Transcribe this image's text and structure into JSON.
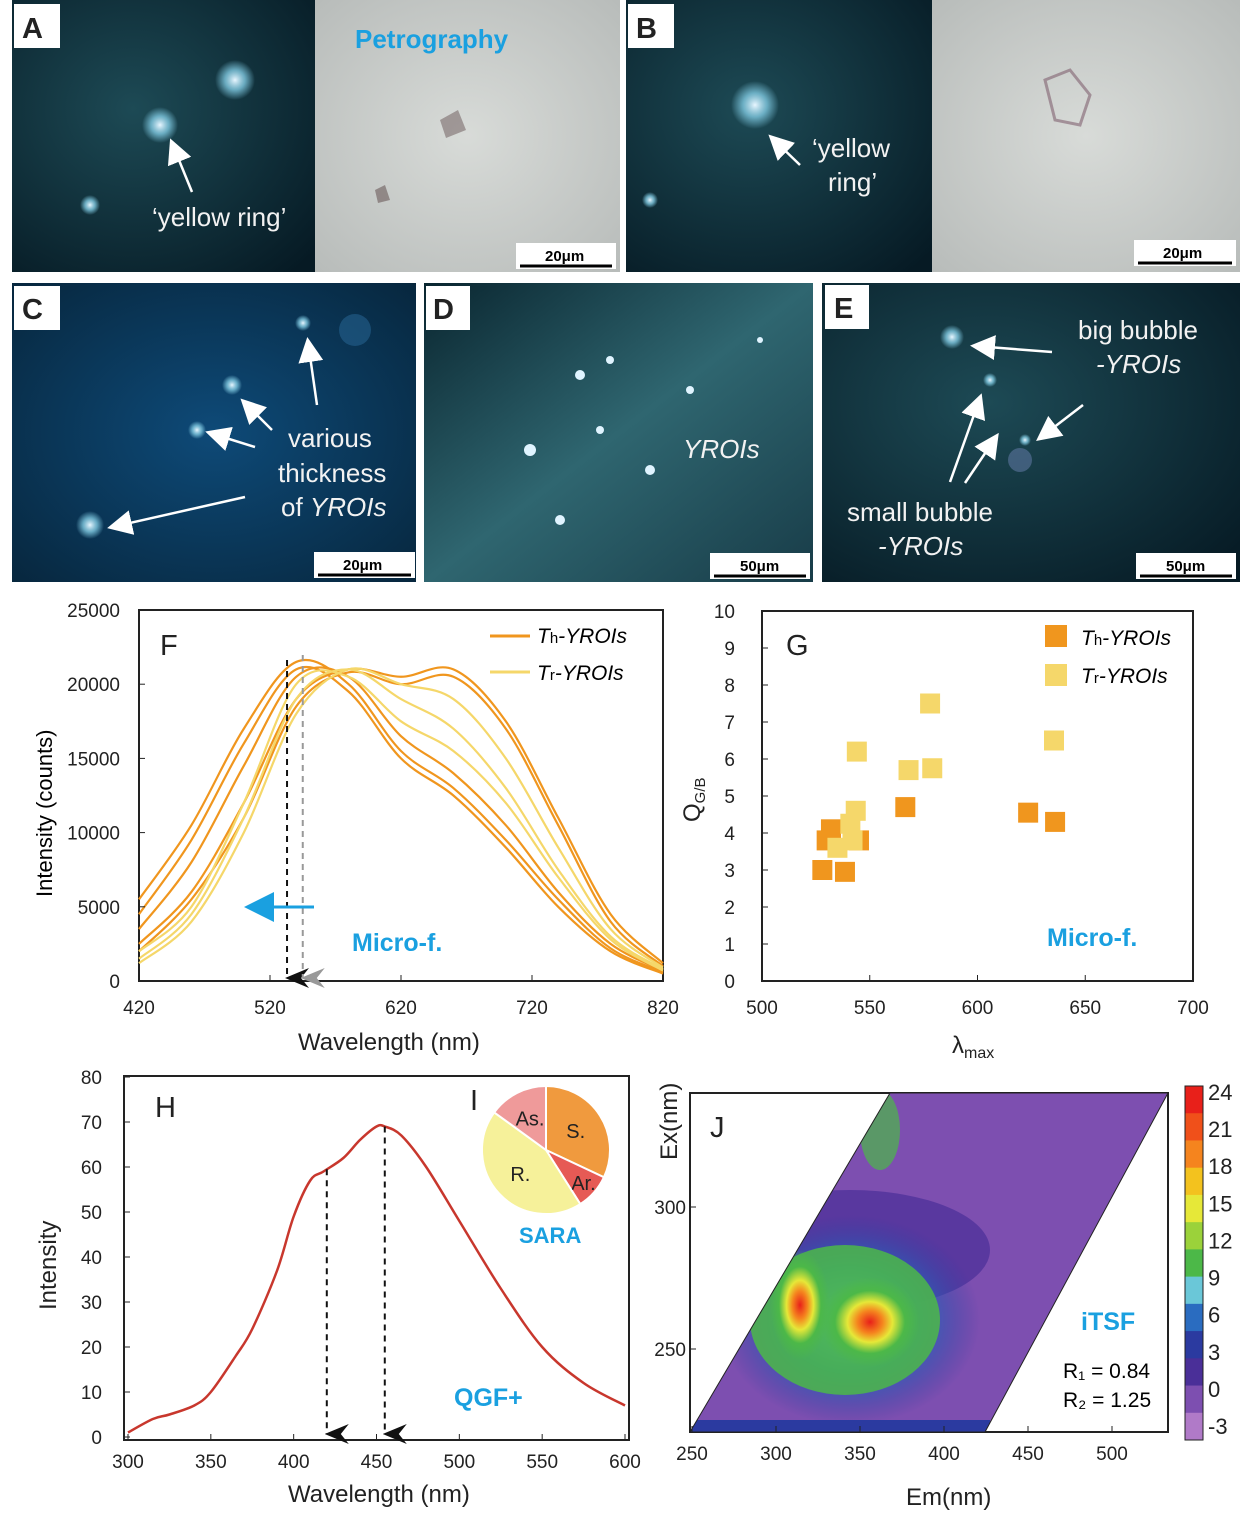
{
  "panels": {
    "A": {
      "label": "A",
      "title": "Petrography",
      "annotation": "‘yellow ring’",
      "scale": "20μm"
    },
    "B": {
      "label": "B",
      "annotation_line1": "‘yellow",
      "annotation_line2": "ring’",
      "scale": "20μm"
    },
    "C": {
      "label": "C",
      "annotation_line1": "various",
      "annotation_line2": "thickness",
      "annotation_line3_prefix": "of ",
      "annotation_line3_italic": "YROIs",
      "scale": "20μm"
    },
    "D": {
      "label": "D",
      "annotation": "YROIs",
      "scale": "50μm"
    },
    "E": {
      "label": "E",
      "big_line1": "big bubble",
      "big_line2": "-YROIs",
      "small_line1": "small bubble",
      "small_line2": "-YROIs",
      "scale": "50μm"
    }
  },
  "colors": {
    "th": "#f0961e",
    "tr": "#f5d76a",
    "accent": "#1aa0e0",
    "h_line": "#c8372d"
  },
  "chart_data": [
    {
      "panel": "F",
      "type": "line",
      "xlabel": "Wavelength (nm)",
      "ylabel": "Intensity (counts)",
      "xlim": [
        420,
        820
      ],
      "ylim": [
        0,
        25000
      ],
      "xticks": [
        420,
        520,
        620,
        720,
        820
      ],
      "yticks": [
        0,
        5000,
        10000,
        15000,
        20000,
        25000
      ],
      "annotation": "Micro-f.",
      "legend": [
        {
          "sub": "h",
          "label": "-YROIs"
        },
        {
          "sub": "r",
          "label": "-YROIs"
        }
      ],
      "legend_placement": "top-right",
      "x": [
        420,
        460,
        500,
        540,
        580,
        620,
        660,
        700,
        740,
        780,
        820
      ],
      "series": [
        {
          "group": "Th",
          "values": [
            4500,
            9500,
            16000,
            21000,
            19500,
            15000,
            12500,
            9000,
            5000,
            2000,
            500
          ]
        },
        {
          "group": "Th",
          "values": [
            3500,
            8000,
            14500,
            20500,
            20500,
            16500,
            14000,
            10500,
            6000,
            2500,
            700
          ]
        },
        {
          "group": "Th",
          "values": [
            5500,
            10500,
            17000,
            21500,
            20000,
            15500,
            13000,
            9500,
            5500,
            2200,
            600
          ]
        },
        {
          "group": "Th",
          "values": [
            2500,
            6000,
            12000,
            19000,
            21000,
            20500,
            21000,
            17500,
            11000,
            4500,
            1200
          ]
        },
        {
          "group": "Th",
          "values": [
            2000,
            5500,
            11000,
            18500,
            20800,
            20000,
            20500,
            17000,
            10500,
            4000,
            1000
          ]
        },
        {
          "group": "Tr",
          "values": [
            1500,
            4500,
            11000,
            19000,
            21000,
            19000,
            17000,
            13000,
            7500,
            3000,
            800
          ]
        },
        {
          "group": "Tr",
          "values": [
            2000,
            5000,
            12000,
            20000,
            20500,
            17500,
            15500,
            12000,
            7000,
            2800,
            700
          ]
        },
        {
          "group": "Tr",
          "values": [
            1200,
            4000,
            10000,
            18000,
            21000,
            20000,
            19000,
            15000,
            9000,
            3500,
            900
          ]
        }
      ],
      "peak_markers": [
        533,
        545
      ]
    },
    {
      "panel": "G",
      "type": "scatter",
      "xlabel": "λ",
      "xlabel_sub": "max",
      "ylabel": "Q",
      "ylabel_sub": "G/B",
      "xlim": [
        500,
        700
      ],
      "ylim": [
        0,
        10
      ],
      "xticks": [
        500,
        550,
        600,
        650,
        700
      ],
      "yticks": [
        0,
        1,
        2,
        3,
        4,
        5,
        6,
        7,
        8,
        9,
        10
      ],
      "annotation": "Micro-f.",
      "legend_placement": "top-right",
      "series": [
        {
          "group": "Th",
          "points": [
            [
              528,
              3.0
            ],
            [
              538.5,
              2.95
            ],
            [
              530,
              3.8
            ],
            [
              532,
              4.1
            ],
            [
              545,
              3.8
            ],
            [
              566.5,
              4.7
            ],
            [
              623.5,
              4.55
            ],
            [
              636,
              4.3
            ]
          ]
        },
        {
          "group": "Tr",
          "points": [
            [
              544,
              6.2
            ],
            [
              578,
              7.5
            ],
            [
              568,
              5.7
            ],
            [
              579,
              5.75
            ],
            [
              635.5,
              6.5
            ],
            [
              543.5,
              4.6
            ],
            [
              541,
              4.25
            ],
            [
              535,
              3.6
            ],
            [
              542,
              3.8
            ]
          ]
        }
      ]
    },
    {
      "panel": "H",
      "type": "line",
      "xlabel": "Wavelength (nm)",
      "ylabel": "Intensity",
      "xlim": [
        300,
        600
      ],
      "ylim": [
        0,
        80
      ],
      "xticks": [
        300,
        350,
        400,
        450,
        500,
        550,
        600
      ],
      "yticks": [
        0,
        10,
        20,
        30,
        40,
        50,
        60,
        70,
        80
      ],
      "annotation": "QGF+",
      "x": [
        300,
        315,
        325,
        340,
        350,
        365,
        375,
        390,
        400,
        410,
        418,
        430,
        440,
        450,
        455,
        465,
        480,
        500,
        525,
        550,
        575,
        600
      ],
      "values": [
        1,
        4,
        5,
        7,
        10,
        18,
        24,
        37,
        49,
        57,
        59,
        62,
        66,
        69,
        69,
        67,
        60,
        48,
        33,
        20,
        12,
        7
      ],
      "peak_markers": [
        420,
        455
      ]
    },
    {
      "panel": "I",
      "type": "pie",
      "title": "SARA",
      "slices": [
        {
          "label": "S.",
          "value": 32,
          "color": "#f09a3e"
        },
        {
          "label": "Ar.",
          "value": 9,
          "color": "#e65a55"
        },
        {
          "label": "R.",
          "value": 44,
          "color": "#f6f19a"
        },
        {
          "label": "As.",
          "value": 15,
          "color": "#ef9a9a"
        }
      ]
    },
    {
      "panel": "J",
      "type": "heatmap",
      "xlabel": "Em(nm)",
      "ylabel": "Ex(nm)",
      "xticks": [
        250,
        300,
        350,
        400,
        450,
        500
      ],
      "yticks": [
        250,
        300
      ],
      "annotation": "iTSF",
      "r1": "R₁ = 0.84",
      "r2": "R₂ = 1.25",
      "colorbar_ticks": [
        24,
        21,
        18,
        15,
        12,
        9,
        6,
        3,
        0,
        -3
      ],
      "colorbar_colors": [
        "#e8201a",
        "#f0501a",
        "#f5841e",
        "#f3c21e",
        "#e6e838",
        "#9bd23a",
        "#4cb848",
        "#6ac7d8",
        "#2a6cc0",
        "#2b3aa0",
        "#4a2f98",
        "#7d4fb0",
        "#b07ac8"
      ],
      "peaks": [
        {
          "em": 315,
          "ex": 265,
          "level": 21
        },
        {
          "em": 360,
          "ex": 258,
          "level": 24
        }
      ]
    }
  ]
}
